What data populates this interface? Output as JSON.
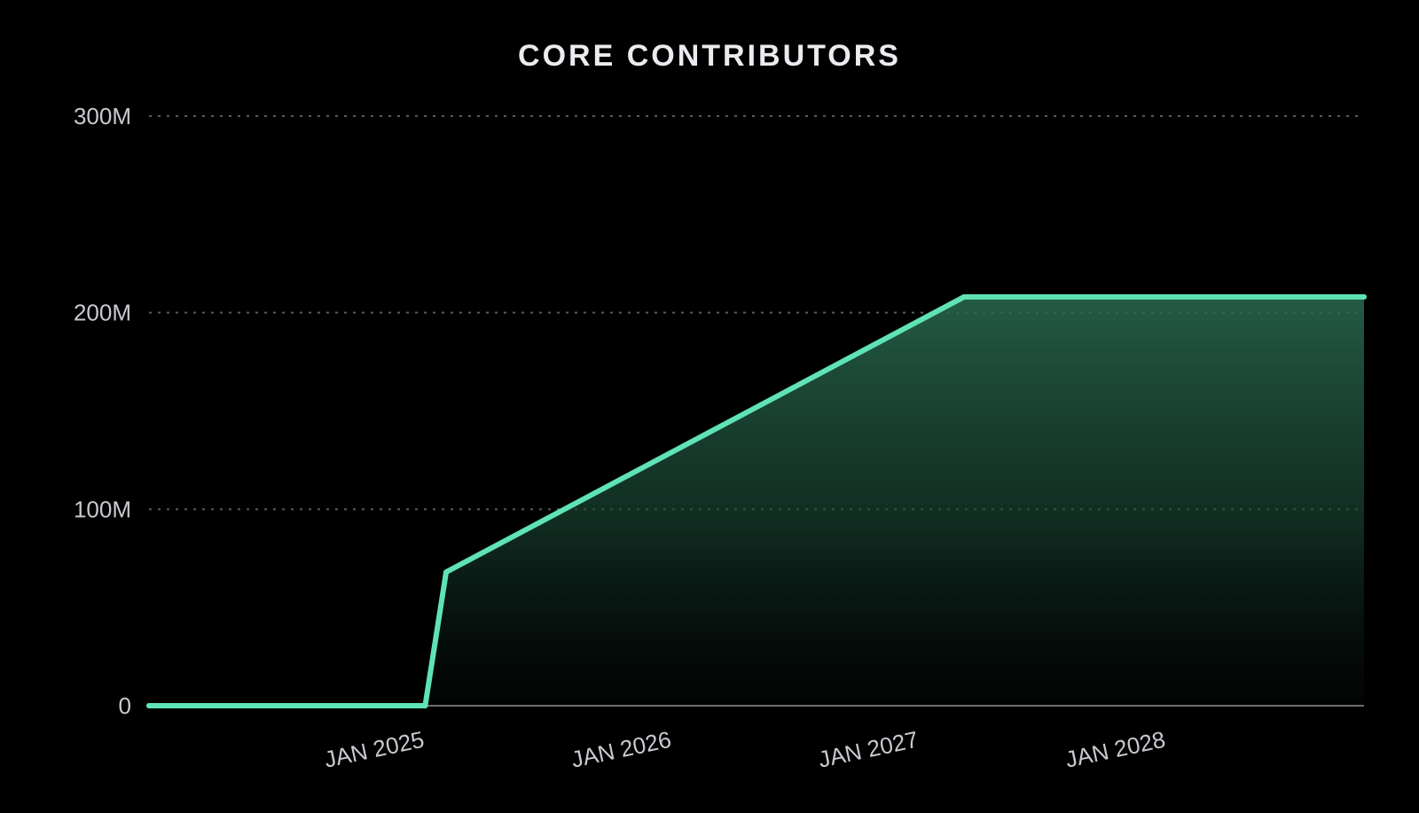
{
  "chart_data": {
    "type": "area",
    "title": "CORE CONTRIBUTORS",
    "xlabel": "",
    "ylabel": "",
    "x": [
      "2024-02-01",
      "2025-03-15",
      "2025-04-15",
      "2027-05-20",
      "2028-12-31"
    ],
    "series": [
      {
        "values": [
          0,
          0,
          68000000,
          208000000,
          208000000
        ]
      }
    ],
    "xlim": [
      "2024-02-01",
      "2028-12-31"
    ],
    "ylim": [
      0,
      300000000
    ],
    "y_ticks": [
      {
        "value": 0,
        "label": "0"
      },
      {
        "value": 100000000,
        "label": "100M"
      },
      {
        "value": 200000000,
        "label": "200M"
      },
      {
        "value": 300000000,
        "label": "300M"
      }
    ],
    "x_ticks": [
      {
        "value": "2025-01-01",
        "label": "JAN 2025"
      },
      {
        "value": "2026-01-01",
        "label": "JAN 2026"
      },
      {
        "value": "2027-01-01",
        "label": "JAN 2027"
      },
      {
        "value": "2028-01-01",
        "label": "JAN 2028"
      }
    ],
    "grid": true,
    "grid_style": "dotted",
    "legend": "none",
    "colors": {
      "background": "#000000",
      "line": "#5fe3b6",
      "fill_top": "#2a6b50",
      "grid": "#5a5a5a",
      "axis": "#6e6e6e",
      "text": "#c9c9d0"
    }
  }
}
